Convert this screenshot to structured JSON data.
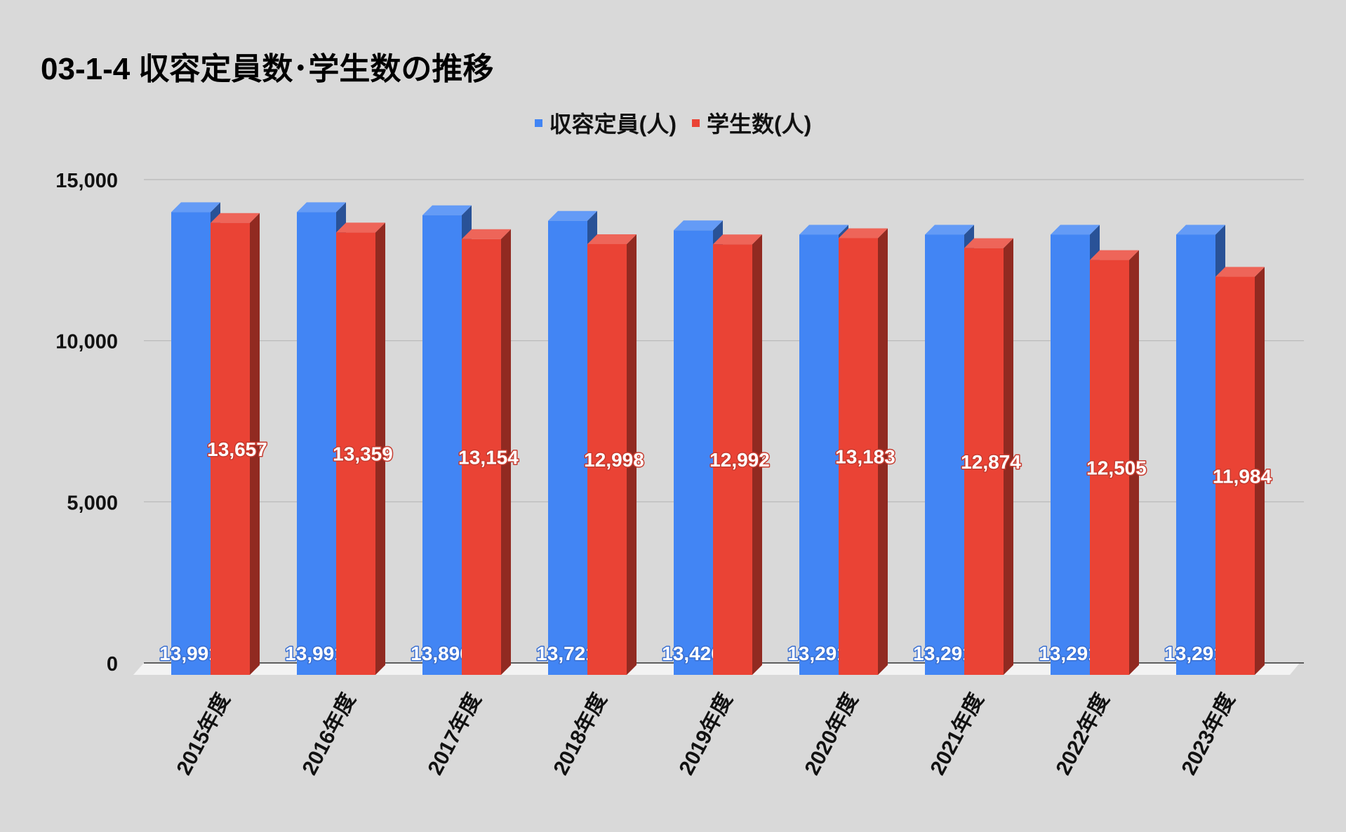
{
  "chart_data": {
    "type": "bar",
    "title": "03-1-4 収容定員数･学生数の推移",
    "categories": [
      "2015年度",
      "2016年度",
      "2017年度",
      "2018年度",
      "2019年度",
      "2020年度",
      "2021年度",
      "2022年度",
      "2023年度"
    ],
    "series": [
      {
        "name": "収容定員(人)",
        "color": "#4285f4",
        "values": [
          13991,
          13991,
          13896,
          13721,
          13426,
          13291,
          13291,
          13291,
          13291
        ]
      },
      {
        "name": "学生数(人)",
        "color": "#ea4335",
        "values": [
          13657,
          13359,
          13154,
          12998,
          12992,
          13183,
          12874,
          12505,
          11984
        ]
      }
    ],
    "ylim": [
      0,
      15000
    ],
    "yticks": [
      0,
      5000,
      10000,
      15000
    ],
    "ytick_labels": [
      "0",
      "5,000",
      "10,000",
      "15,000"
    ],
    "grid": true,
    "legend": "top-center",
    "style": "3d-bar"
  }
}
